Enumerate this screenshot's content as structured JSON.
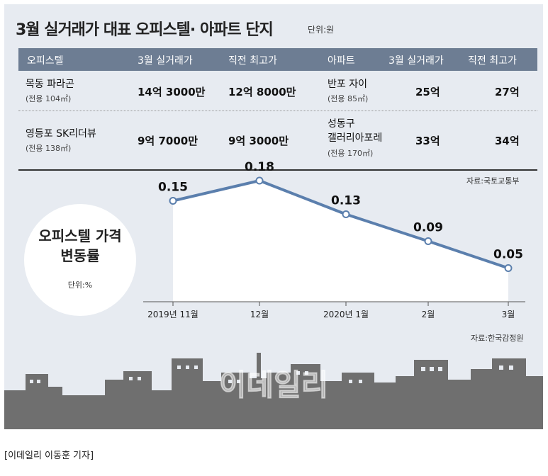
{
  "title": "3월 실거래가 대표 오피스텔· 아파트 단지",
  "title_unit": "단위:원",
  "table": {
    "headers": [
      "오피스텔",
      "3월 실거래가",
      "직전 최고가",
      "아파트",
      "3월 실거래가",
      "직전 최고가"
    ],
    "rows": [
      {
        "officetel": "목동 파라곤",
        "officetel_area": "(전용 104㎡)",
        "officetel_march": "14억 3000만",
        "officetel_prev_high": "12억 8000만",
        "apt_lines": [
          "반포 자이"
        ],
        "apt_area": "(전용 85㎡)",
        "apt_march": "25억",
        "apt_prev_high": "27억"
      },
      {
        "officetel": "영등포 SK리더뷰",
        "officetel_area": "(전용 138㎡)",
        "officetel_march": "9억 7000만",
        "officetel_prev_high": "9억 3000만",
        "apt_lines": [
          "성동구",
          "갤러리아포레"
        ],
        "apt_area": "(전용 170㎡)",
        "apt_march": "33억",
        "apt_prev_high": "34억"
      }
    ],
    "source": "자료:국토교통부"
  },
  "chart_data": {
    "type": "area",
    "title_lines": [
      "오피스텔 가격",
      "변동률"
    ],
    "unit": "단위:%",
    "categories": [
      "2019년 11월",
      "12월",
      "2020년 1월",
      "2월",
      "3월"
    ],
    "values": [
      0.15,
      0.18,
      0.13,
      0.09,
      0.05
    ],
    "value_labels": [
      "0.15",
      "0.18",
      "0.13",
      "0.09",
      "0.05"
    ],
    "ylim": [
      0,
      0.2
    ],
    "grid": false,
    "line_color": "#5b7fad",
    "fill_color": "#ffffff",
    "source": "자료:한국감정원"
  },
  "watermark": "이데일리",
  "caption": "[이데일리 이동훈 기자]",
  "colors": {
    "panel": "#e7ebf1",
    "header": "#6d7d93",
    "skyline": "#6f6f6f"
  }
}
